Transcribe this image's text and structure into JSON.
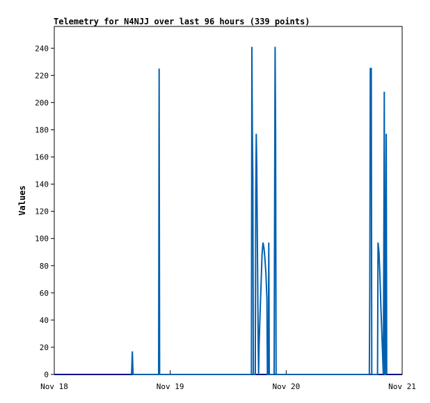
{
  "chart_data": {
    "type": "line",
    "title": "Telemetry for N4NJJ over last 96 hours (339 points)",
    "xlabel": "",
    "ylabel": "Values",
    "x_ticks": [
      "Nov 18",
      "Nov 19",
      "Nov 20",
      "Nov 21"
    ],
    "y_ticks": [
      0,
      20,
      40,
      60,
      80,
      100,
      120,
      140,
      160,
      180,
      200,
      220,
      240
    ],
    "xlim_hours": [
      0,
      72
    ],
    "ylim": [
      0,
      256
    ],
    "grid": false,
    "legend": "none",
    "series": [
      {
        "color": "#0060b0",
        "points": [
          [
            16.0,
            0
          ],
          [
            16.15,
            17
          ],
          [
            16.3,
            0
          ],
          [
            21.6,
            0
          ],
          [
            21.7,
            225
          ],
          [
            21.8,
            0
          ],
          [
            40.8,
            0
          ],
          [
            40.9,
            241
          ],
          [
            41.0,
            177
          ],
          [
            41.1,
            145
          ],
          [
            41.2,
            0
          ],
          [
            41.6,
            0
          ],
          [
            41.7,
            133
          ],
          [
            41.8,
            177
          ],
          [
            41.9,
            154
          ],
          [
            42.0,
            110
          ],
          [
            42.1,
            66
          ],
          [
            42.2,
            22
          ],
          [
            42.3,
            0
          ],
          [
            42.4,
            22
          ],
          [
            42.6,
            45
          ],
          [
            42.8,
            66
          ],
          [
            43.0,
            88
          ],
          [
            43.2,
            97
          ],
          [
            43.4,
            93
          ],
          [
            43.6,
            85
          ],
          [
            43.8,
            74
          ],
          [
            44.0,
            56
          ],
          [
            44.1,
            0
          ],
          [
            44.3,
            0
          ],
          [
            44.4,
            97
          ],
          [
            44.5,
            0
          ],
          [
            45.5,
            0
          ],
          [
            45.6,
            128
          ],
          [
            45.7,
            241
          ],
          [
            45.8,
            177
          ],
          [
            45.9,
            0
          ],
          [
            65.2,
            0
          ],
          [
            65.3,
            65
          ],
          [
            65.4,
            225
          ],
          [
            65.6,
            225
          ],
          [
            65.7,
            0
          ],
          [
            66.9,
            0
          ],
          [
            67.0,
            97
          ],
          [
            67.2,
            90
          ],
          [
            67.4,
            72
          ],
          [
            67.6,
            50
          ],
          [
            67.8,
            30
          ],
          [
            68.0,
            10
          ],
          [
            68.1,
            0
          ],
          [
            68.2,
            89
          ],
          [
            68.3,
            208
          ],
          [
            68.4,
            0
          ],
          [
            68.5,
            0
          ],
          [
            68.6,
            113
          ],
          [
            68.7,
            177
          ],
          [
            68.8,
            0
          ]
        ]
      }
    ]
  }
}
